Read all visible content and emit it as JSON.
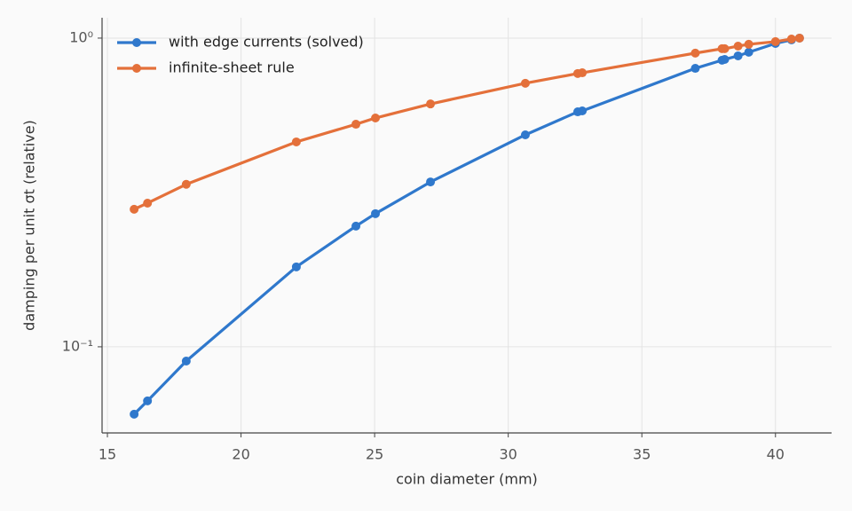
{
  "chart_data": {
    "type": "line",
    "x_label": "coin diameter (mm)",
    "y_label": "damping per unit σt (relative)",
    "x": [
      16,
      16.5,
      17.95,
      22.07,
      24.3,
      25.03,
      27.09,
      30.64,
      32.6,
      32.77,
      37.0,
      38.0,
      38.1,
      38.6,
      39.0,
      40.0,
      40.6,
      40.9
    ],
    "series": [
      {
        "name": "with edge currents (solved)",
        "color": "#2f78cc",
        "values": [
          0.0605,
          0.0668,
          0.0899,
          0.1815,
          0.246,
          0.27,
          0.342,
          0.486,
          0.577,
          0.581,
          0.798,
          0.848,
          0.853,
          0.876,
          0.9,
          0.961,
          0.987,
          1.0
        ]
      },
      {
        "name": "infinite-sheet rule",
        "color": "#e4703a",
        "values": [
          0.279,
          0.292,
          0.336,
          0.461,
          0.526,
          0.551,
          0.612,
          0.714,
          0.768,
          0.772,
          0.894,
          0.924,
          0.924,
          0.942,
          0.955,
          0.974,
          0.993,
          1.0
        ]
      }
    ],
    "xlim": [
      14.8,
      42.1
    ],
    "xticks": [
      15,
      20,
      25,
      30,
      35,
      40
    ],
    "ylim": [
      0.0526,
      1.164
    ],
    "yscale": "log",
    "yticks": [
      {
        "value": 0.1,
        "label": "10⁻¹"
      },
      {
        "value": 1,
        "label": "10⁰"
      }
    ],
    "grid": true,
    "legend": "upper left"
  }
}
